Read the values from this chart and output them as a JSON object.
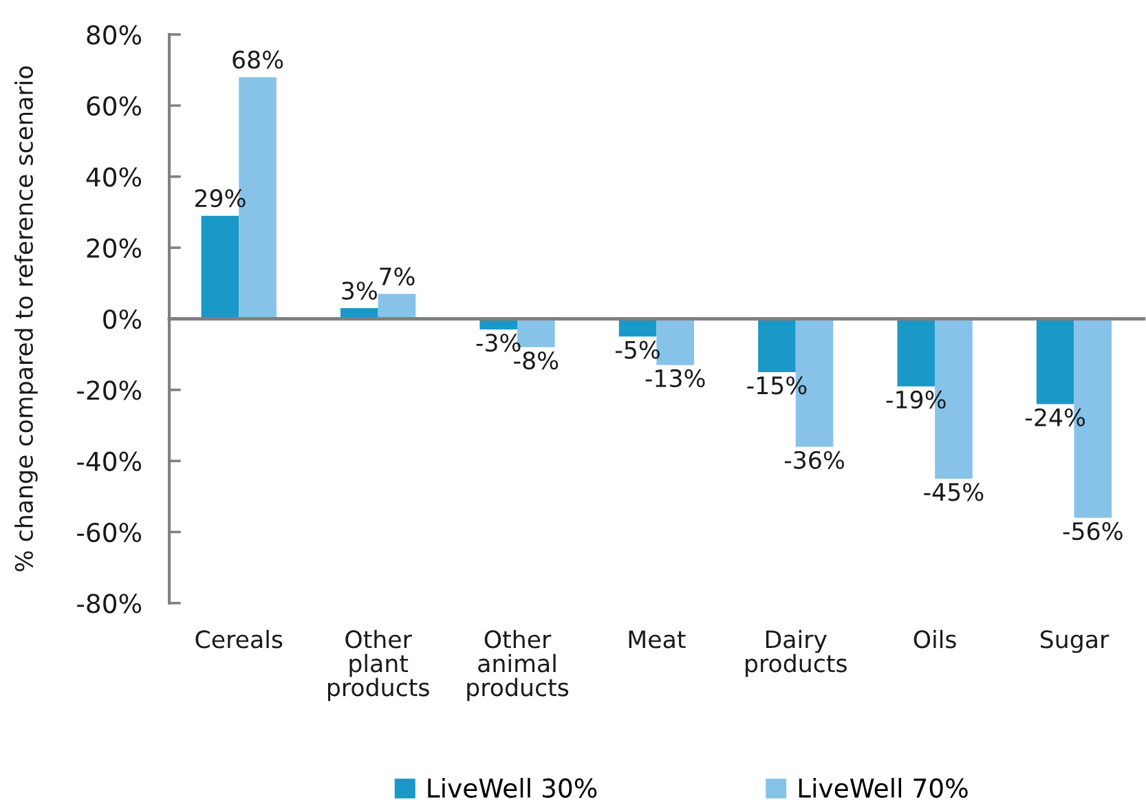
{
  "chart_data": {
    "type": "bar",
    "ylabel": "% change compared to reference scenario",
    "categories": [
      "Cereals",
      "Other plant products",
      "Other animal products",
      "Meat",
      "Dairy products",
      "Oils",
      "Sugar"
    ],
    "series": [
      {
        "name": "LiveWell 30%",
        "color": "#1a98c8",
        "values": [
          29,
          3,
          -3,
          -5,
          -15,
          -19,
          -24
        ]
      },
      {
        "name": "LiveWell 70%",
        "color": "#87c3e9",
        "values": [
          68,
          7,
          -8,
          -13,
          -36,
          -45,
          -56
        ]
      }
    ],
    "ylim": [
      -80,
      80
    ],
    "yticks": [
      {
        "value": -80,
        "label": "-80%"
      },
      {
        "value": -60,
        "label": "-60%"
      },
      {
        "value": -40,
        "label": "-40%"
      },
      {
        "value": -20,
        "label": "-20%"
      },
      {
        "value": 0,
        "label": "0%"
      },
      {
        "value": 20,
        "label": "20%"
      },
      {
        "value": 40,
        "label": "40%"
      },
      {
        "value": 60,
        "label": "60%"
      },
      {
        "value": 80,
        "label": "80%"
      }
    ],
    "value_labels": [
      [
        "29%",
        "3%",
        "-3%",
        "-5%",
        "-15%",
        "-19%",
        "-24%"
      ],
      [
        "68%",
        "7%",
        "-8%",
        "-13%",
        "-36%",
        "-45%",
        "-56%"
      ]
    ],
    "legend": "bottom"
  }
}
